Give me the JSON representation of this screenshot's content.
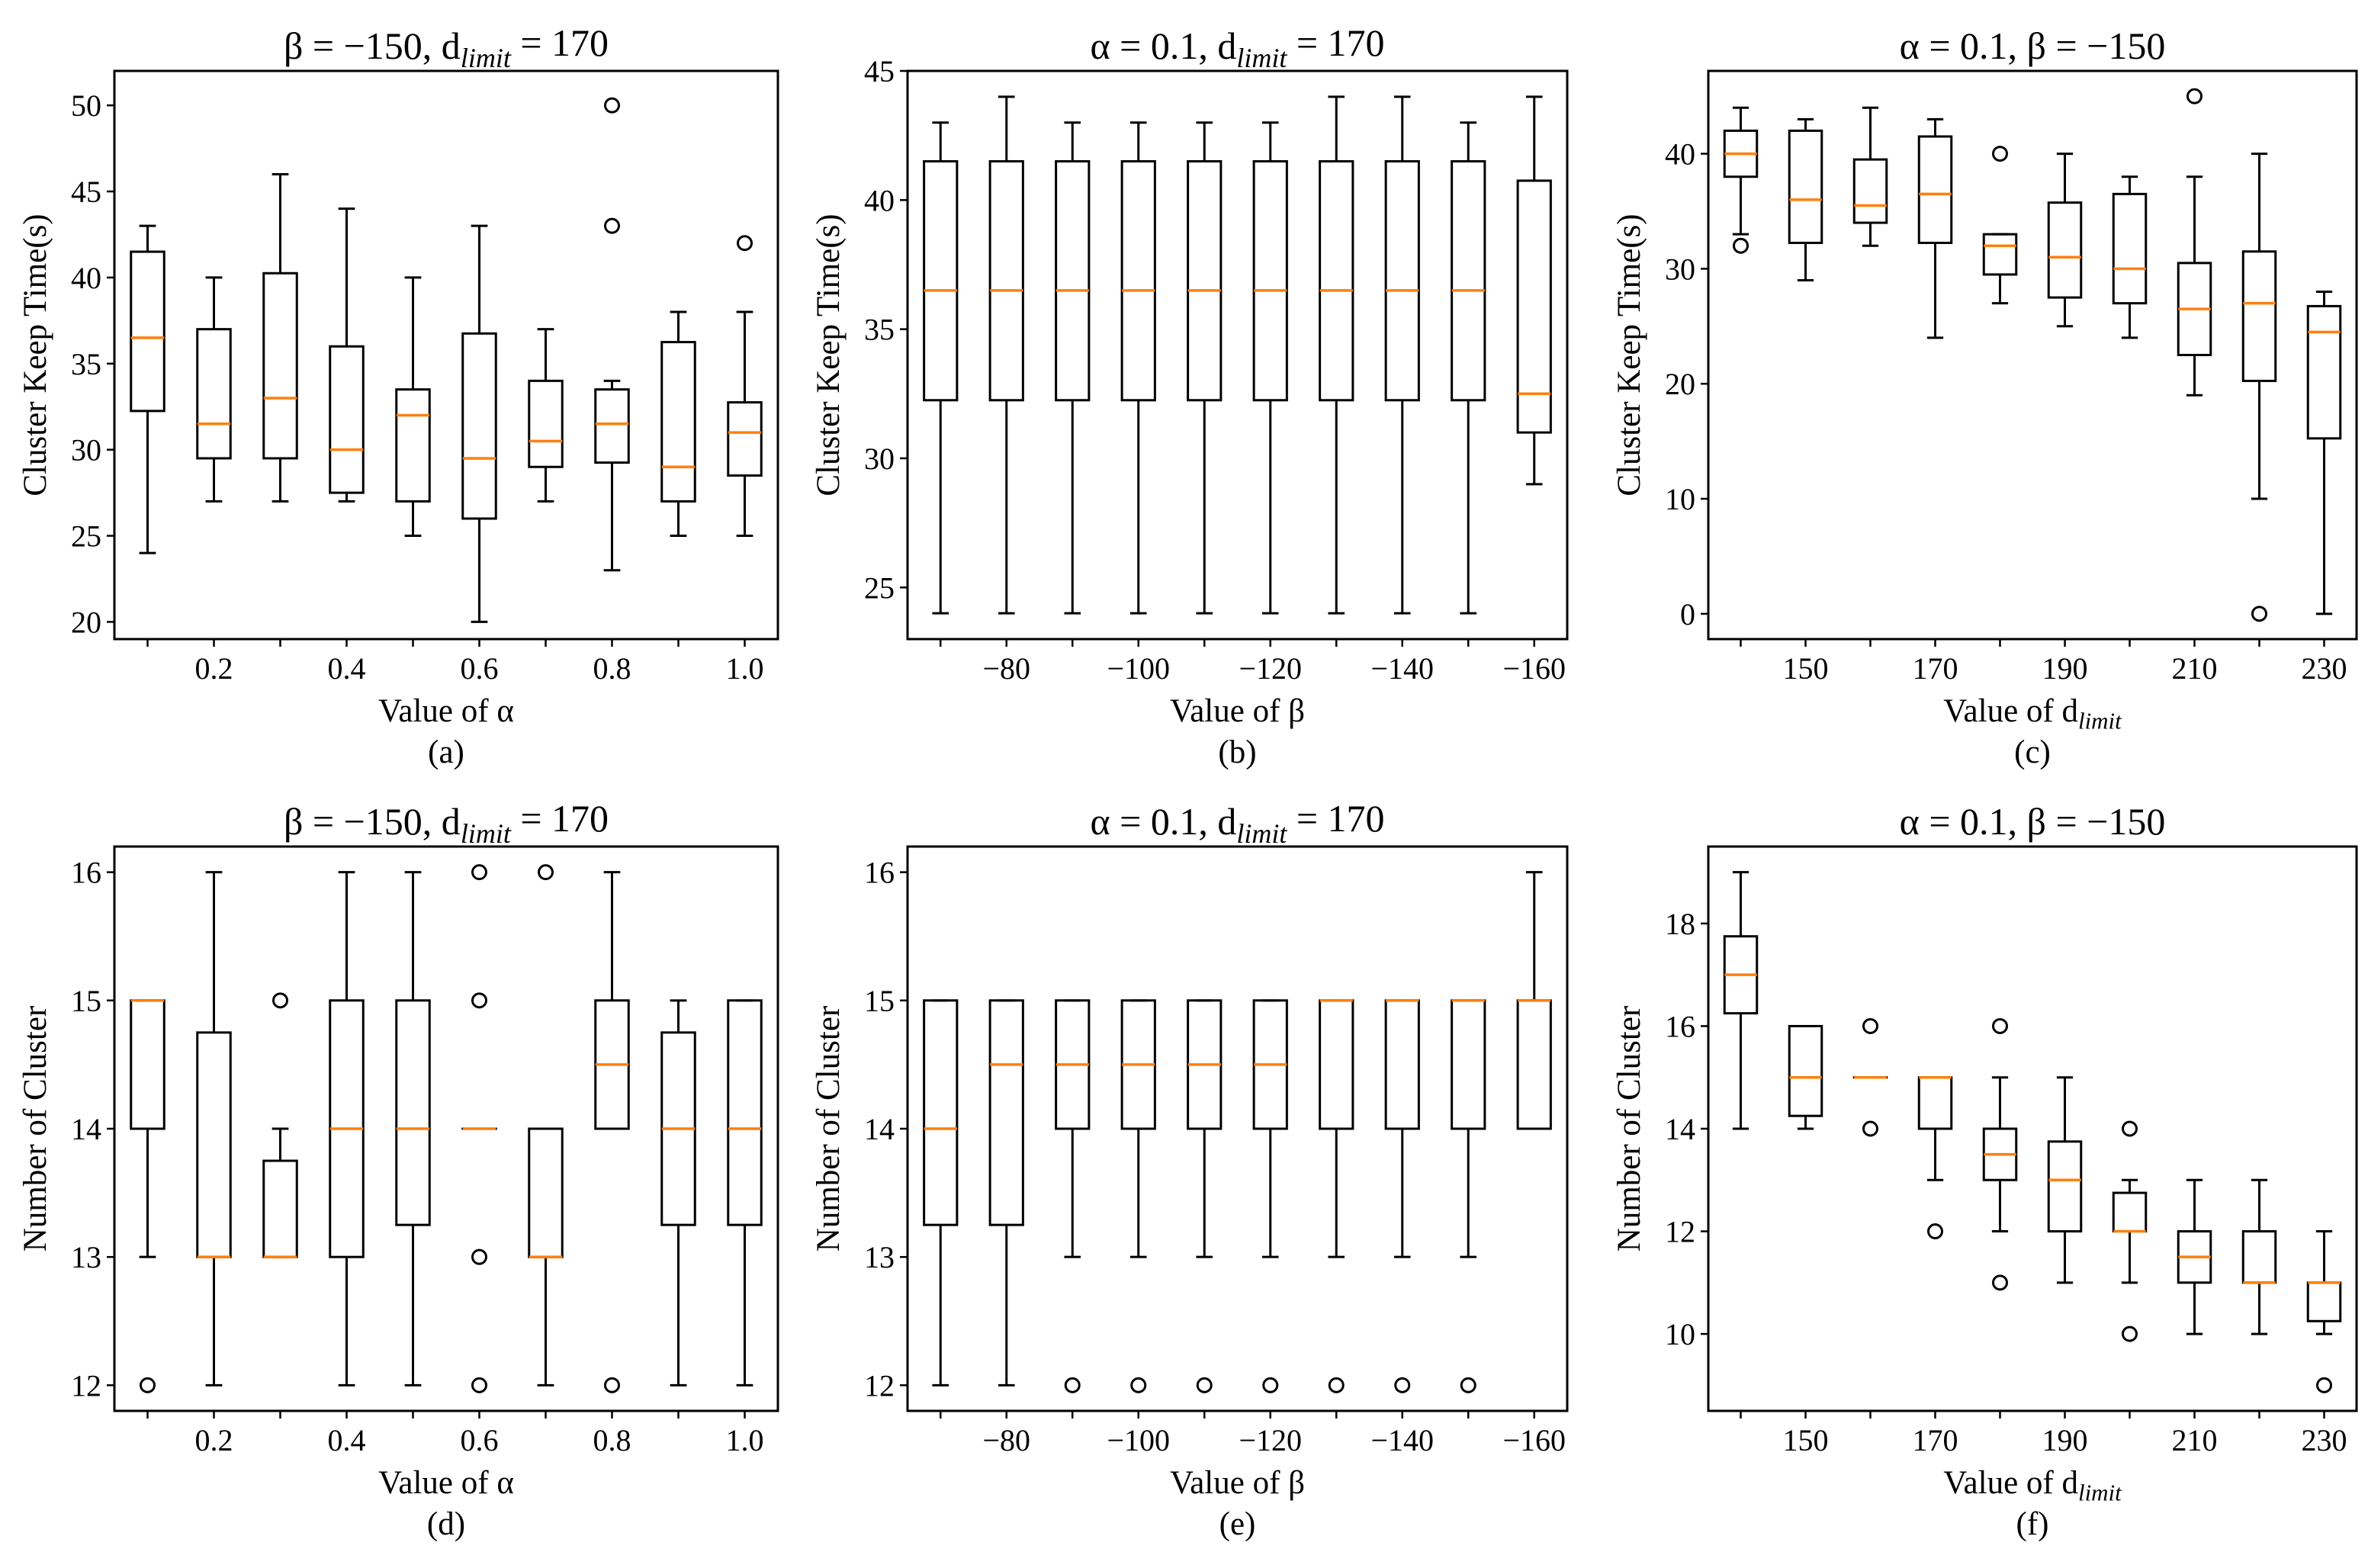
{
  "figure": {
    "median_color": "#ff7f0e",
    "box_color": "#000000",
    "background": "#ffffff"
  },
  "chart_data": [
    {
      "id": "a",
      "type": "box",
      "caption": "(a)",
      "title": {
        "pre": "β = −150, d",
        "sub": "limit",
        "post": " = 170"
      },
      "xlabel": {
        "pre": "Value of α",
        "sub": "",
        "post": ""
      },
      "ylabel": "Cluster Keep Time(s)",
      "ylim": [
        19,
        52
      ],
      "yticks": [
        20,
        25,
        30,
        35,
        40,
        45,
        50
      ],
      "ytick_labels": [
        "20",
        "25",
        "30",
        "35",
        "40",
        "45",
        "50"
      ],
      "xtick_positions": [
        2,
        4,
        6,
        8,
        10
      ],
      "xtick_labels": [
        "0.2",
        "0.4",
        "0.6",
        "0.8",
        "1.0"
      ],
      "boxes": [
        {
          "whislo": 24,
          "q1": 32.25,
          "med": 36.5,
          "q3": 41.5,
          "whishi": 43,
          "fliers": []
        },
        {
          "whislo": 27,
          "q1": 29.5,
          "med": 31.5,
          "q3": 37,
          "whishi": 40,
          "fliers": []
        },
        {
          "whislo": 27,
          "q1": 29.5,
          "med": 33,
          "q3": 40.25,
          "whishi": 46,
          "fliers": []
        },
        {
          "whislo": 27,
          "q1": 27.5,
          "med": 30,
          "q3": 36,
          "whishi": 44,
          "fliers": []
        },
        {
          "whislo": 25,
          "q1": 27,
          "med": 32,
          "q3": 33.5,
          "whishi": 40,
          "fliers": []
        },
        {
          "whislo": 20,
          "q1": 26,
          "med": 29.5,
          "q3": 36.75,
          "whishi": 43,
          "fliers": []
        },
        {
          "whislo": 27,
          "q1": 29,
          "med": 30.5,
          "q3": 34,
          "whishi": 37,
          "fliers": []
        },
        {
          "whislo": 23,
          "q1": 29.25,
          "med": 31.5,
          "q3": 33.5,
          "whishi": 34,
          "fliers": [
            43,
            50
          ]
        },
        {
          "whislo": 25,
          "q1": 27,
          "med": 29,
          "q3": 36.25,
          "whishi": 38,
          "fliers": []
        },
        {
          "whislo": 25,
          "q1": 28.5,
          "med": 31,
          "q3": 32.75,
          "whishi": 38,
          "fliers": [
            42
          ]
        }
      ]
    },
    {
      "id": "b",
      "type": "box",
      "caption": "(b)",
      "title": {
        "pre": "α = 0.1, d",
        "sub": "limit",
        "post": " = 170"
      },
      "xlabel": {
        "pre": "Value of β",
        "sub": "",
        "post": ""
      },
      "ylabel": "Cluster Keep Time(s)",
      "ylim": [
        23,
        45
      ],
      "yticks": [
        25,
        30,
        35,
        40,
        45
      ],
      "ytick_labels": [
        "25",
        "30",
        "35",
        "40",
        "45"
      ],
      "xtick_positions": [
        2,
        4,
        6,
        8,
        10
      ],
      "xtick_labels": [
        "−80",
        "−100",
        "−120",
        "−140",
        "−160"
      ],
      "boxes": [
        {
          "whislo": 24,
          "q1": 32.25,
          "med": 36.5,
          "q3": 41.5,
          "whishi": 43,
          "fliers": []
        },
        {
          "whislo": 24,
          "q1": 32.25,
          "med": 36.5,
          "q3": 41.5,
          "whishi": 44,
          "fliers": []
        },
        {
          "whislo": 24,
          "q1": 32.25,
          "med": 36.5,
          "q3": 41.5,
          "whishi": 43,
          "fliers": []
        },
        {
          "whislo": 24,
          "q1": 32.25,
          "med": 36.5,
          "q3": 41.5,
          "whishi": 43,
          "fliers": []
        },
        {
          "whislo": 24,
          "q1": 32.25,
          "med": 36.5,
          "q3": 41.5,
          "whishi": 43,
          "fliers": []
        },
        {
          "whislo": 24,
          "q1": 32.25,
          "med": 36.5,
          "q3": 41.5,
          "whishi": 43,
          "fliers": []
        },
        {
          "whislo": 24,
          "q1": 32.25,
          "med": 36.5,
          "q3": 41.5,
          "whishi": 44,
          "fliers": []
        },
        {
          "whislo": 24,
          "q1": 32.25,
          "med": 36.5,
          "q3": 41.5,
          "whishi": 44,
          "fliers": []
        },
        {
          "whislo": 24,
          "q1": 32.25,
          "med": 36.5,
          "q3": 41.5,
          "whishi": 43,
          "fliers": []
        },
        {
          "whislo": 29,
          "q1": 31,
          "med": 32.5,
          "q3": 40.75,
          "whishi": 44,
          "fliers": []
        }
      ]
    },
    {
      "id": "c",
      "type": "box",
      "caption": "(c)",
      "title": {
        "pre": "α = 0.1, β = −150",
        "sub": "",
        "post": ""
      },
      "xlabel": {
        "pre": "Value of d",
        "sub": "limit",
        "post": ""
      },
      "ylabel": "Cluster Keep Time(s)",
      "ylim": [
        -2.2,
        47.2
      ],
      "yticks": [
        0,
        10,
        20,
        30,
        40
      ],
      "ytick_labels": [
        "0",
        "10",
        "20",
        "30",
        "40"
      ],
      "xtick_positions": [
        2,
        4,
        6,
        8,
        10
      ],
      "xtick_labels": [
        "150",
        "170",
        "190",
        "210",
        "230"
      ],
      "boxes": [
        {
          "whislo": 33,
          "q1": 38,
          "med": 40,
          "q3": 42,
          "whishi": 44,
          "fliers": [
            32
          ]
        },
        {
          "whislo": 29,
          "q1": 32.25,
          "med": 36,
          "q3": 42,
          "whishi": 43,
          "fliers": []
        },
        {
          "whislo": 32,
          "q1": 34,
          "med": 35.5,
          "q3": 39.5,
          "whishi": 44,
          "fliers": []
        },
        {
          "whislo": 24,
          "q1": 32.25,
          "med": 36.5,
          "q3": 41.5,
          "whishi": 43,
          "fliers": []
        },
        {
          "whislo": 27,
          "q1": 29.5,
          "med": 32,
          "q3": 33,
          "whishi": 33,
          "fliers": [
            40
          ]
        },
        {
          "whislo": 25,
          "q1": 27.5,
          "med": 31,
          "q3": 35.75,
          "whishi": 40,
          "fliers": []
        },
        {
          "whislo": 24,
          "q1": 27,
          "med": 30,
          "q3": 36.5,
          "whishi": 38,
          "fliers": []
        },
        {
          "whislo": 19,
          "q1": 22.5,
          "med": 26.5,
          "q3": 30.5,
          "whishi": 38,
          "fliers": [
            45
          ]
        },
        {
          "whislo": 10,
          "q1": 20.25,
          "med": 27,
          "q3": 31.5,
          "whishi": 40,
          "fliers": [
            0
          ]
        },
        {
          "whislo": 0,
          "q1": 15.25,
          "med": 24.5,
          "q3": 26.75,
          "whishi": 28,
          "fliers": []
        }
      ]
    },
    {
      "id": "d",
      "type": "box",
      "caption": "(d)",
      "title": {
        "pre": "β = −150, d",
        "sub": "limit",
        "post": " = 170"
      },
      "xlabel": {
        "pre": "Value of α",
        "sub": "",
        "post": ""
      },
      "ylabel": "Number of Cluster",
      "ylim": [
        11.8,
        16.2
      ],
      "yticks": [
        12,
        13,
        14,
        15,
        16
      ],
      "ytick_labels": [
        "12",
        "13",
        "14",
        "15",
        "16"
      ],
      "xtick_positions": [
        2,
        4,
        6,
        8,
        10
      ],
      "xtick_labels": [
        "0.2",
        "0.4",
        "0.6",
        "0.8",
        "1.0"
      ],
      "boxes": [
        {
          "whislo": 13,
          "q1": 14,
          "med": 15,
          "q3": 15,
          "whishi": 15,
          "fliers": [
            12
          ]
        },
        {
          "whislo": 12,
          "q1": 13,
          "med": 13,
          "q3": 14.75,
          "whishi": 16,
          "fliers": []
        },
        {
          "whislo": 13,
          "q1": 13,
          "med": 13,
          "q3": 13.75,
          "whishi": 14,
          "fliers": [
            15
          ]
        },
        {
          "whislo": 12,
          "q1": 13,
          "med": 14,
          "q3": 15,
          "whishi": 16,
          "fliers": []
        },
        {
          "whislo": 12,
          "q1": 13.25,
          "med": 14,
          "q3": 15,
          "whishi": 16,
          "fliers": []
        },
        {
          "whislo": 14,
          "q1": 14,
          "med": 14,
          "q3": 14,
          "whishi": 14,
          "fliers": [
            12,
            13,
            15,
            16
          ]
        },
        {
          "whislo": 12,
          "q1": 13,
          "med": 13,
          "q3": 14,
          "whishi": 14,
          "fliers": [
            16
          ]
        },
        {
          "whislo": 14,
          "q1": 14,
          "med": 14.5,
          "q3": 15,
          "whishi": 16,
          "fliers": [
            12
          ]
        },
        {
          "whislo": 12,
          "q1": 13.25,
          "med": 14,
          "q3": 14.75,
          "whishi": 15,
          "fliers": []
        },
        {
          "whislo": 12,
          "q1": 13.25,
          "med": 14,
          "q3": 15,
          "whishi": 15,
          "fliers": []
        }
      ]
    },
    {
      "id": "e",
      "type": "box",
      "caption": "(e)",
      "title": {
        "pre": "α = 0.1, d",
        "sub": "limit",
        "post": " = 170"
      },
      "xlabel": {
        "pre": "Value of β",
        "sub": "",
        "post": ""
      },
      "ylabel": "Number of Cluster",
      "ylim": [
        11.8,
        16.2
      ],
      "yticks": [
        12,
        13,
        14,
        15,
        16
      ],
      "ytick_labels": [
        "12",
        "13",
        "14",
        "15",
        "16"
      ],
      "xtick_positions": [
        2,
        4,
        6,
        8,
        10
      ],
      "xtick_labels": [
        "−80",
        "−100",
        "−120",
        "−140",
        "−160"
      ],
      "boxes": [
        {
          "whislo": 12,
          "q1": 13.25,
          "med": 14,
          "q3": 15,
          "whishi": 15,
          "fliers": []
        },
        {
          "whislo": 12,
          "q1": 13.25,
          "med": 14.5,
          "q3": 15,
          "whishi": 15,
          "fliers": []
        },
        {
          "whislo": 13,
          "q1": 14,
          "med": 14.5,
          "q3": 15,
          "whishi": 15,
          "fliers": [
            12
          ]
        },
        {
          "whislo": 13,
          "q1": 14,
          "med": 14.5,
          "q3": 15,
          "whishi": 15,
          "fliers": [
            12
          ]
        },
        {
          "whislo": 13,
          "q1": 14,
          "med": 14.5,
          "q3": 15,
          "whishi": 15,
          "fliers": [
            12
          ]
        },
        {
          "whislo": 13,
          "q1": 14,
          "med": 14.5,
          "q3": 15,
          "whishi": 15,
          "fliers": [
            12
          ]
        },
        {
          "whislo": 13,
          "q1": 14,
          "med": 15,
          "q3": 15,
          "whishi": 15,
          "fliers": [
            12
          ]
        },
        {
          "whislo": 13,
          "q1": 14,
          "med": 15,
          "q3": 15,
          "whishi": 15,
          "fliers": [
            12
          ]
        },
        {
          "whislo": 13,
          "q1": 14,
          "med": 15,
          "q3": 15,
          "whishi": 15,
          "fliers": [
            12
          ]
        },
        {
          "whislo": 14,
          "q1": 14,
          "med": 15,
          "q3": 15,
          "whishi": 16,
          "fliers": []
        }
      ]
    },
    {
      "id": "f",
      "type": "box",
      "caption": "(f)",
      "title": {
        "pre": "α = 0.1, β = −150",
        "sub": "",
        "post": ""
      },
      "xlabel": {
        "pre": "Value of d",
        "sub": "limit",
        "post": ""
      },
      "ylabel": "Number of Cluster",
      "ylim": [
        8.5,
        19.5
      ],
      "yticks": [
        10,
        12,
        14,
        16,
        18
      ],
      "ytick_labels": [
        "10",
        "12",
        "14",
        "16",
        "18"
      ],
      "xtick_positions": [
        2,
        4,
        6,
        8,
        10
      ],
      "xtick_labels": [
        "150",
        "170",
        "190",
        "210",
        "230"
      ],
      "boxes": [
        {
          "whislo": 14,
          "q1": 16.25,
          "med": 17,
          "q3": 17.75,
          "whishi": 19,
          "fliers": []
        },
        {
          "whislo": 14,
          "q1": 14.25,
          "med": 15,
          "q3": 16,
          "whishi": 16,
          "fliers": []
        },
        {
          "whislo": 15,
          "q1": 15,
          "med": 15,
          "q3": 15,
          "whishi": 15,
          "fliers": [
            14,
            16
          ]
        },
        {
          "whislo": 13,
          "q1": 14,
          "med": 15,
          "q3": 15,
          "whishi": 15,
          "fliers": [
            12
          ]
        },
        {
          "whislo": 12,
          "q1": 13,
          "med": 13.5,
          "q3": 14,
          "whishi": 15,
          "fliers": [
            11,
            16
          ]
        },
        {
          "whislo": 11,
          "q1": 12,
          "med": 13,
          "q3": 13.75,
          "whishi": 15,
          "fliers": []
        },
        {
          "whislo": 11,
          "q1": 12,
          "med": 12,
          "q3": 12.75,
          "whishi": 13,
          "fliers": [
            10,
            14
          ]
        },
        {
          "whislo": 10,
          "q1": 11,
          "med": 11.5,
          "q3": 12,
          "whishi": 13,
          "fliers": []
        },
        {
          "whislo": 10,
          "q1": 11,
          "med": 11,
          "q3": 12,
          "whishi": 13,
          "fliers": []
        },
        {
          "whislo": 10,
          "q1": 10.25,
          "med": 11,
          "q3": 11,
          "whishi": 12,
          "fliers": [
            9
          ]
        }
      ]
    }
  ]
}
